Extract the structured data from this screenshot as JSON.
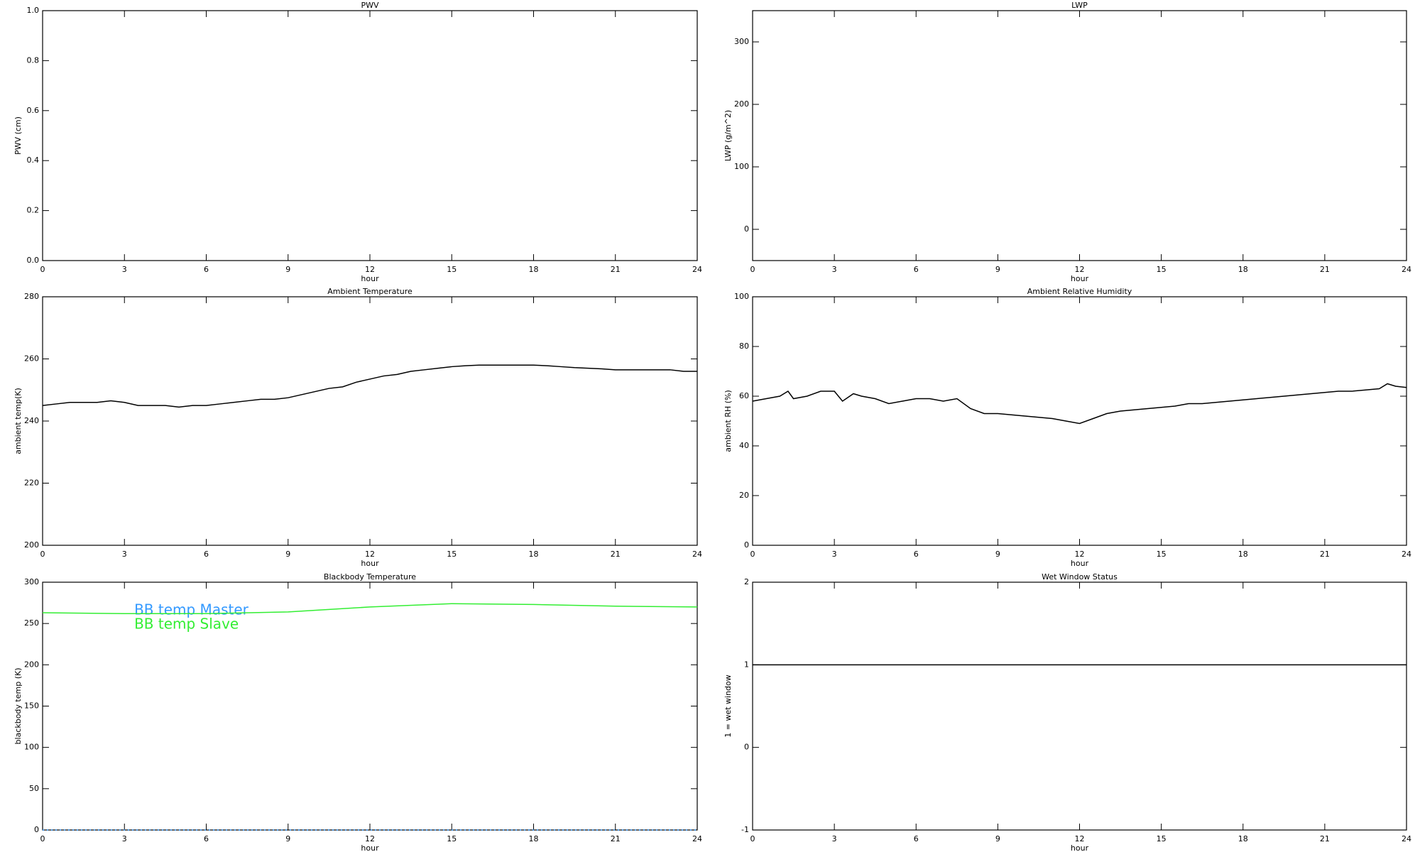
{
  "chart_data": [
    {
      "type": "line",
      "title": "PWV",
      "x_label": "hour",
      "y_label": "PWV (cm)",
      "xlim": [
        0,
        24
      ],
      "xticks": [
        0,
        3,
        6,
        9,
        12,
        15,
        18,
        21,
        24
      ],
      "ylim": [
        0,
        1
      ],
      "yticks": [
        {
          "value": 0,
          "label": "0.0"
        },
        0.2,
        0.4,
        0.6,
        0.8,
        {
          "value": 1,
          "label": "1.0"
        }
      ],
      "x": [],
      "series": []
    },
    {
      "type": "line",
      "title": "LWP",
      "x_label": "hour",
      "y_label": "LWP (g/m^2)",
      "xlim": [
        0,
        24
      ],
      "xticks": [
        0,
        3,
        6,
        9,
        12,
        15,
        18,
        21,
        24
      ],
      "ylim": [
        -50,
        350
      ],
      "yticks": [
        0,
        100,
        200,
        300
      ],
      "x": [],
      "series": []
    },
    {
      "type": "line",
      "title": "Ambient Temperature",
      "x_label": "hour",
      "y_label": "ambient temp(K)",
      "xlim": [
        0,
        24
      ],
      "xticks": [
        0,
        3,
        6,
        9,
        12,
        15,
        18,
        21,
        24
      ],
      "ylim": [
        200,
        280
      ],
      "yticks": [
        200,
        220,
        240,
        260,
        280
      ],
      "x": [
        0,
        0.5,
        1,
        1.5,
        2,
        2.5,
        3,
        3.5,
        4,
        4.5,
        5,
        5.5,
        6,
        6.5,
        7,
        7.5,
        8,
        8.5,
        9,
        9.5,
        10,
        10.5,
        11,
        11.5,
        12,
        12.5,
        13,
        13.5,
        14,
        14.5,
        15,
        15.5,
        16,
        16.5,
        17,
        17.5,
        18,
        18.5,
        19,
        19.5,
        20,
        20.5,
        21,
        21.5,
        22,
        22.5,
        23,
        23.5,
        24
      ],
      "series": [
        {
          "color": "#000000",
          "values": [
            245,
            245.5,
            246,
            246,
            246,
            246.5,
            246,
            245,
            245,
            245,
            244.5,
            245,
            245,
            245.5,
            246,
            246.5,
            247,
            247,
            247.5,
            248.5,
            249.5,
            250.5,
            251,
            252.5,
            253.5,
            254.5,
            255,
            256,
            256.5,
            257,
            257.5,
            257.8,
            258,
            258,
            258,
            258,
            258,
            257.8,
            257.5,
            257.2,
            257,
            256.8,
            256.5,
            256.5,
            256.5,
            256.5,
            256.5,
            256,
            256
          ]
        }
      ]
    },
    {
      "type": "line",
      "title": "Ambient Relative Humidity",
      "x_label": "hour",
      "y_label": "ambient RH (%)",
      "xlim": [
        0,
        24
      ],
      "xticks": [
        0,
        3,
        6,
        9,
        12,
        15,
        18,
        21,
        24
      ],
      "ylim": [
        0,
        100
      ],
      "yticks": [
        0,
        20,
        40,
        60,
        80,
        100
      ],
      "x": [
        0,
        0.5,
        1,
        1.3,
        1.5,
        2,
        2.5,
        3,
        3.3,
        3.7,
        4,
        4.5,
        5,
        5.5,
        6,
        6.5,
        7,
        7.5,
        8,
        8.5,
        9,
        9.5,
        10,
        10.5,
        11,
        11.5,
        12,
        12.5,
        13,
        13.5,
        14,
        14.5,
        15,
        15.5,
        16,
        16.5,
        17,
        17.5,
        18,
        18.5,
        19,
        19.5,
        20,
        20.5,
        21,
        21.5,
        22,
        22.5,
        23,
        23.3,
        23.6,
        24
      ],
      "series": [
        {
          "color": "#000000",
          "values": [
            58,
            59,
            60,
            62,
            59,
            60,
            62,
            62,
            58,
            61,
            60,
            59,
            57,
            58,
            59,
            59,
            58,
            59,
            55,
            53,
            53,
            52.5,
            52,
            51.5,
            51,
            50,
            49,
            51,
            53,
            54,
            54.5,
            55,
            55.5,
            56,
            57,
            57,
            57.5,
            58,
            58.5,
            59,
            59.5,
            60,
            60.5,
            61,
            61.5,
            62,
            62,
            62.5,
            63,
            65,
            64,
            63.5
          ]
        }
      ]
    },
    {
      "type": "line",
      "title": "Blackbody Temperature",
      "x_label": "hour",
      "y_label": "blackbody temp (K)",
      "xlim": [
        0,
        24
      ],
      "xticks": [
        0,
        3,
        6,
        9,
        12,
        15,
        18,
        21,
        24
      ],
      "ylim": [
        0,
        300
      ],
      "yticks": [
        0,
        50,
        100,
        150,
        200,
        250,
        300
      ],
      "legend": "upper left",
      "x": [
        0,
        3,
        6,
        9,
        12,
        15,
        18,
        21,
        24
      ],
      "series": [
        {
          "name": "BB temp Master",
          "color": "#3399ff",
          "linestyle": "dotted",
          "values": [
            0,
            0,
            0,
            0,
            0,
            0,
            0,
            0,
            0
          ]
        },
        {
          "name": "BB temp Slave",
          "color": "#33ee33",
          "values": [
            263,
            262,
            262,
            264,
            270,
            274,
            273,
            271,
            270
          ]
        }
      ]
    },
    {
      "type": "line",
      "title": "Wet Window Status",
      "x_label": "hour",
      "y_label": "1 = wet window",
      "xlim": [
        0,
        24
      ],
      "xticks": [
        0,
        3,
        6,
        9,
        12,
        15,
        18,
        21,
        24
      ],
      "ylim": [
        -1,
        2
      ],
      "yticks": [
        -1,
        0,
        1,
        2
      ],
      "x": [
        0,
        24
      ],
      "series": [
        {
          "color": "#000000",
          "values": [
            1,
            1
          ]
        }
      ]
    }
  ]
}
